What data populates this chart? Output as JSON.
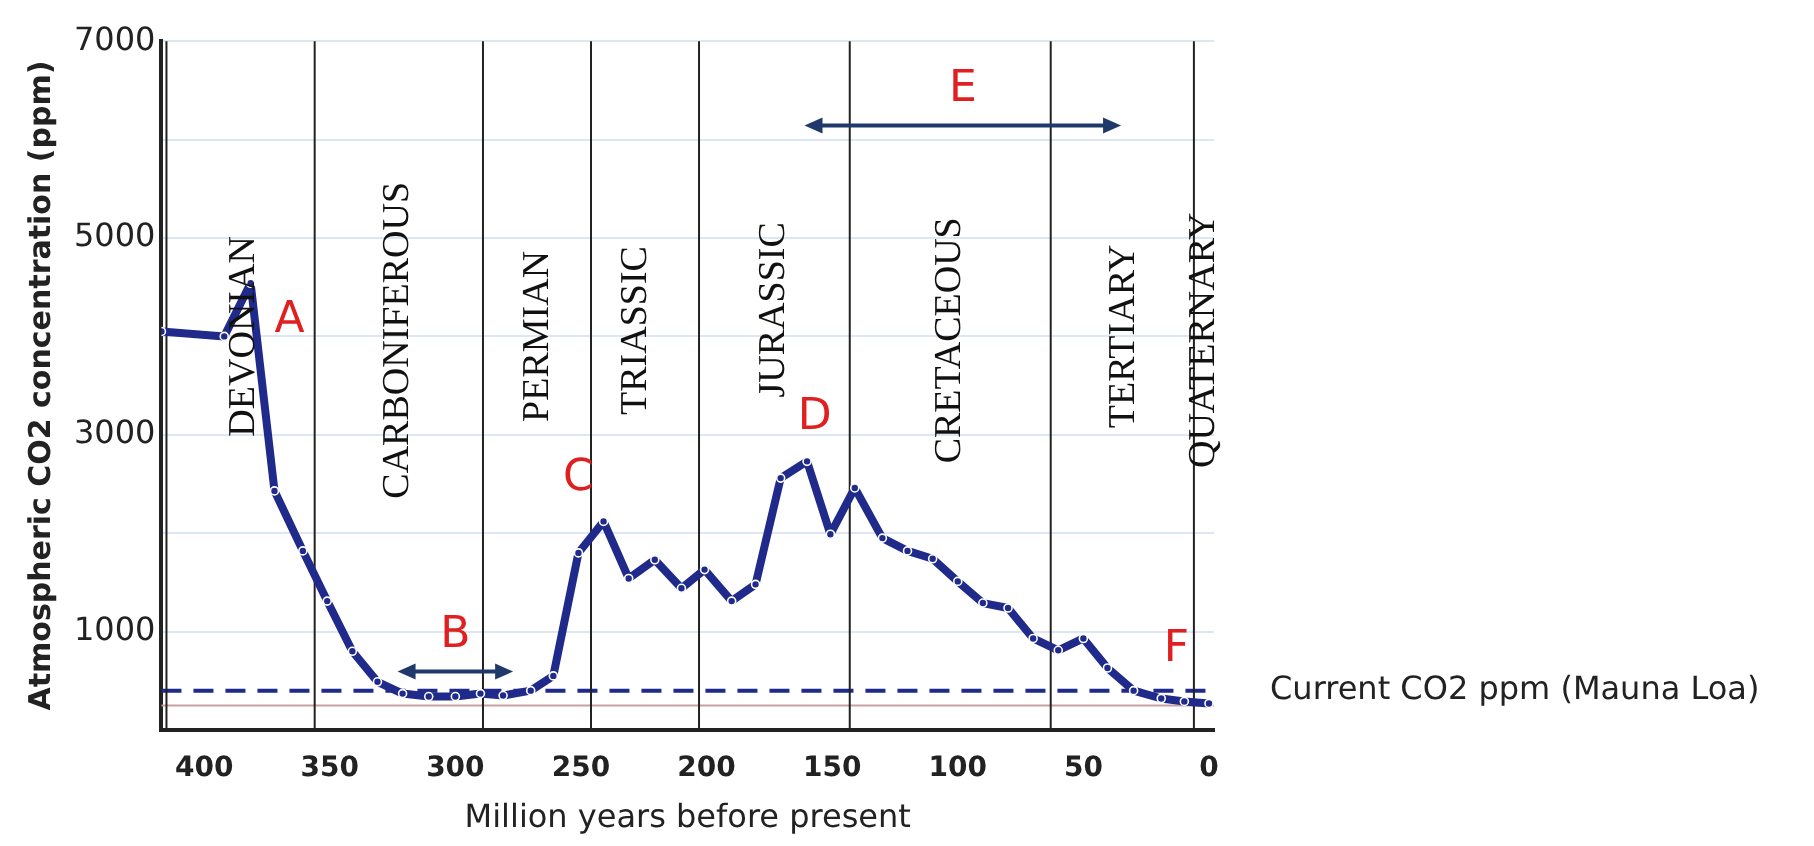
{
  "chart_data": {
    "type": "line",
    "xlabel": "Million years before present",
    "ylabel": "Atmospheric CO2 concentration (ppm)",
    "xlim": [
      417,
      -2
    ],
    "xticks": [
      400,
      350,
      300,
      250,
      200,
      150,
      100,
      50,
      0
    ],
    "ylim": [
      0,
      7000
    ],
    "yticks": [
      1000,
      {
        "value": 2000,
        "label": null
      },
      3000,
      {
        "value": 4000,
        "label": null
      },
      5000,
      {
        "value": 6000,
        "label": null
      },
      7000
    ],
    "grid": "y",
    "marker": "circle",
    "line_style": "solid",
    "legend": false,
    "series": [
      {
        "color": "#1f2a8a",
        "x": [
          417,
          392,
          381.5,
          372,
          360.7,
          351,
          341,
          331,
          321,
          310.6,
          300,
          290,
          281,
          270,
          261,
          251,
          241,
          231,
          220.6,
          210,
          200.8,
          190,
          180.5,
          170.5,
          160,
          150.7,
          141,
          130,
          120,
          110,
          100,
          90,
          80,
          70,
          60,
          50,
          40.4,
          30,
          19,
          9.8,
          0
        ],
        "values": [
          4050,
          4000,
          4540,
          2430,
          1820,
          1310,
          800,
          490,
          370,
          340,
          340,
          370,
          350,
          400,
          550,
          1800,
          2120,
          1540,
          1730,
          1440,
          1630,
          1310,
          1480,
          2560,
          2730,
          1990,
          2460,
          1950,
          1820,
          1740,
          1510,
          1290,
          1240,
          930,
          810,
          930,
          630,
          400,
          320,
          290,
          270
        ]
      }
    ],
    "ref_lines": [
      {
        "axis": "y",
        "value": 400,
        "label": "Current CO2 ppm (Mauna Loa)",
        "color": "#1f2a8a",
        "line_style": "dashed"
      },
      {
        "axis": "y",
        "value": 250,
        "color": "#c8a0a0",
        "line_style": "solid"
      },
      {
        "axis": "x",
        "value": 415,
        "color": "#222222"
      },
      {
        "axis": "x",
        "value": 356,
        "color": "#222222"
      },
      {
        "axis": "x",
        "value": 289,
        "color": "#222222"
      },
      {
        "axis": "x",
        "value": 246,
        "color": "#222222"
      },
      {
        "axis": "x",
        "value": 203,
        "color": "#222222"
      },
      {
        "axis": "x",
        "value": 143,
        "color": "#222222"
      },
      {
        "axis": "x",
        "value": 63,
        "color": "#222222"
      },
      {
        "axis": "x",
        "value": 6,
        "color": "#222222"
      }
    ],
    "annotations": [
      "DEVONIAN",
      "CARBONIFEROUS",
      "PERMIAN",
      "TRIASSIC",
      "JURASSIC",
      "CRETACEOUS",
      "TERTIARY",
      "QUATERNARY",
      "A",
      "B",
      "C",
      "D",
      "E",
      "F"
    ]
  }
}
